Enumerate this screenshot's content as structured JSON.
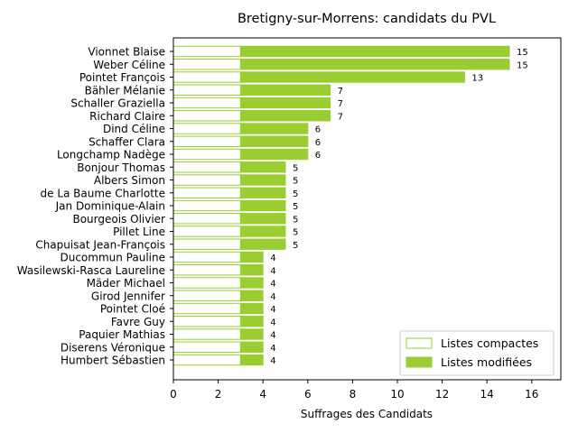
{
  "chart_data": {
    "type": "bar",
    "orientation": "horizontal",
    "title": "Bretigny-sur-Morrens: candidats du PVL",
    "xlabel": "Suffrages des Candidats",
    "ylabel": "",
    "xlim": [
      0,
      17.2
    ],
    "xticks": [
      0,
      2,
      4,
      6,
      8,
      10,
      12,
      14,
      16
    ],
    "legend_position": "bottom-right",
    "colors": {
      "compact_edge": "#9acd32",
      "modified_fill": "#9acd32",
      "compact_fill": "#ffffff"
    },
    "categories": [
      "Vionnet Blaise",
      "Weber Céline",
      "Pointet François",
      "Bähler Mélanie",
      "Schaller Graziella",
      "Richard Claire",
      "Dind Céline",
      "Schaffer Clara",
      "Longchamp Nadège",
      "Bonjour Thomas",
      "Albers Simon",
      "de La Baume Charlotte",
      "Jan Dominique-Alain",
      "Bourgeois Olivier",
      "Pillet Line",
      "Chapuisat Jean-François",
      "Ducommun Pauline",
      "Wasilewski-Rasca Laureline",
      "Mäder Michael",
      "Girod Jennifer",
      "Pointet Cloé",
      "Favre Guy",
      "Paquier Mathias",
      "Diserens Véronique",
      "Humbert Sébastien"
    ],
    "series": [
      {
        "name": "Listes compactes",
        "values": [
          3,
          3,
          3,
          3,
          3,
          3,
          3,
          3,
          3,
          3,
          3,
          3,
          3,
          3,
          3,
          3,
          3,
          3,
          3,
          3,
          3,
          3,
          3,
          3,
          3
        ]
      },
      {
        "name": "Listes modifiées",
        "values": [
          12,
          12,
          10,
          4,
          4,
          4,
          3,
          3,
          3,
          2,
          2,
          2,
          2,
          2,
          2,
          2,
          1,
          1,
          1,
          1,
          1,
          1,
          1,
          1,
          1
        ]
      }
    ],
    "totals": [
      "15",
      "15",
      "13",
      "7",
      "7",
      "7",
      "6",
      "6",
      "6",
      "5",
      "5",
      "5",
      "5",
      "5",
      "5",
      "5",
      "4",
      "4",
      "4",
      "4",
      "4",
      "4",
      "4",
      "4",
      "4"
    ]
  }
}
